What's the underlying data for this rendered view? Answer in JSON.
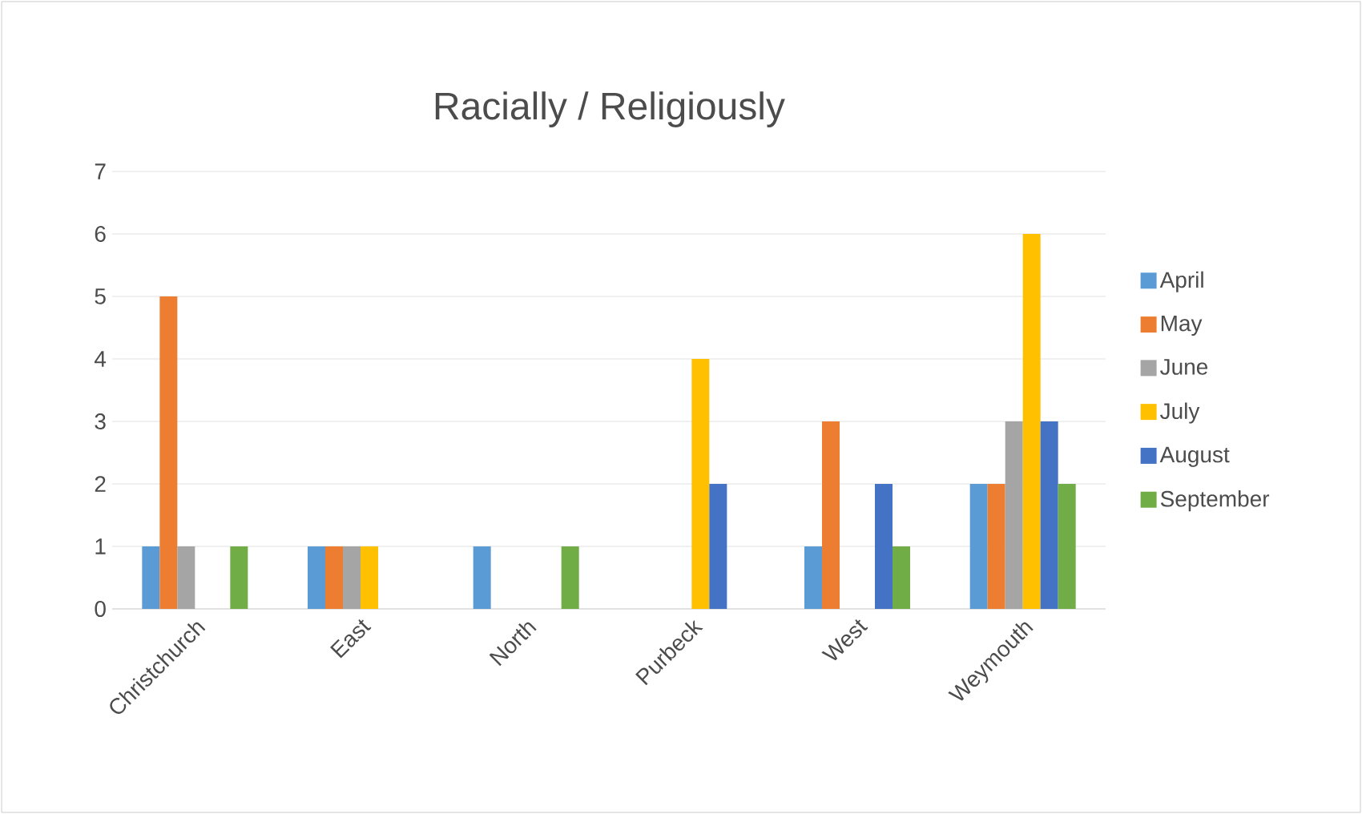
{
  "chart_data": {
    "type": "bar",
    "title": "Racially / Religiously",
    "categories": [
      "Christchurch",
      "East",
      "North",
      "Purbeck",
      "West",
      "Weymouth"
    ],
    "series": [
      {
        "name": "April",
        "color": "#5b9bd5",
        "values": [
          1,
          1,
          1,
          0,
          1,
          2
        ]
      },
      {
        "name": "May",
        "color": "#ed7d31",
        "values": [
          5,
          1,
          0,
          0,
          3,
          2
        ]
      },
      {
        "name": "June",
        "color": "#a5a5a5",
        "values": [
          1,
          1,
          0,
          0,
          0,
          3
        ]
      },
      {
        "name": "July",
        "color": "#ffc000",
        "values": [
          0,
          1,
          0,
          4,
          0,
          6
        ]
      },
      {
        "name": "August",
        "color": "#4472c4",
        "values": [
          0,
          0,
          0,
          2,
          2,
          3
        ]
      },
      {
        "name": "September",
        "color": "#70ad47",
        "values": [
          1,
          0,
          1,
          0,
          1,
          2
        ]
      }
    ],
    "ylim": [
      0,
      7
    ],
    "yticks": [
      0,
      1,
      2,
      3,
      4,
      5,
      6,
      7
    ],
    "grid": "y",
    "legend": "right"
  }
}
